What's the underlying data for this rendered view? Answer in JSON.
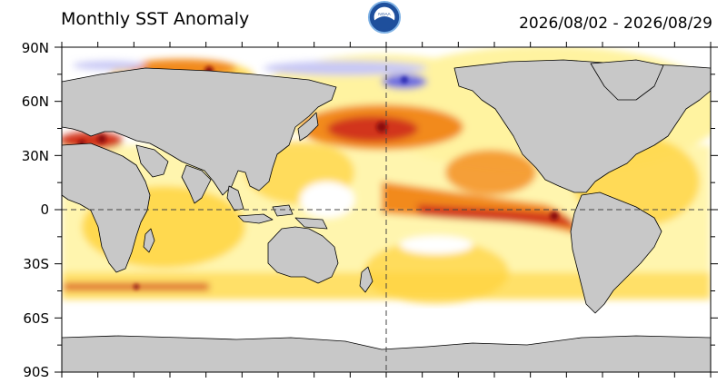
{
  "header": {
    "title": "Monthly SST Anomaly",
    "date_range": "2026/08/02 - 2026/08/29",
    "logo_text": "NOAA"
  },
  "axis": {
    "lat_labels": [
      "90N",
      "60N",
      "30N",
      "0",
      "30S",
      "60S",
      "90S"
    ]
  },
  "colors": {
    "land": "#c8c8c8",
    "ocean_neutral": "#ffffff",
    "warm_light": "#fff3a0",
    "warm_yellow": "#ffd23a",
    "warm_orange": "#f28a1c",
    "warm_red": "#d2361a",
    "warm_darkred": "#8c0d0d",
    "cool_light": "#c8c8f5",
    "cool_blue": "#6a6ae0",
    "cool_dark": "#2a2ab0"
  }
}
